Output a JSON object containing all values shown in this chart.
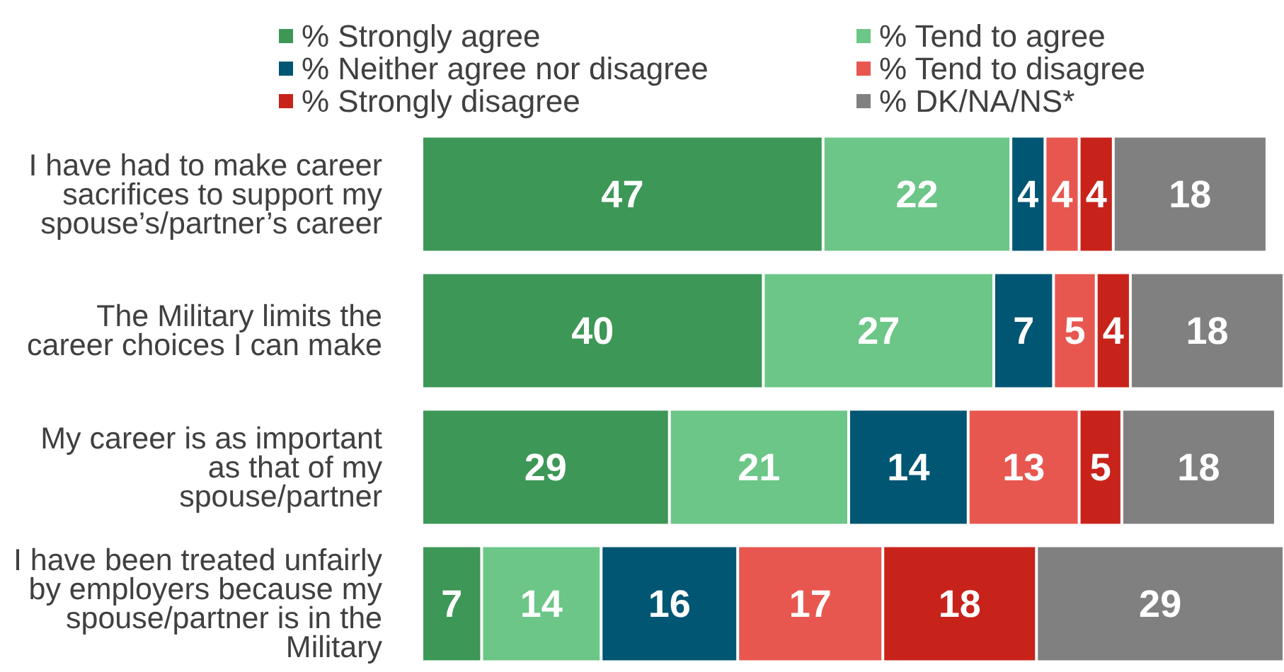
{
  "chart_data": {
    "type": "bar",
    "orientation": "horizontal",
    "stacked": true,
    "data_labels": true,
    "grid": false,
    "legend": "top",
    "tick_labels": "y",
    "categories": [
      "I have had to make career sacrifices to support my spouse’s/partner’s career",
      "The Military limits the career choices I can make",
      "My career is as important as that of my spouse/partner",
      "I have been treated unfairly by employers because my spouse/partner is in the Military"
    ],
    "series": [
      {
        "name": "% Strongly agree",
        "color": "#3d9756",
        "values": [
          47,
          40,
          29,
          7
        ]
      },
      {
        "name": "% Tend to agree",
        "color": "#6cc687",
        "values": [
          22,
          27,
          21,
          14
        ]
      },
      {
        "name": "% Neither agree nor disagree",
        "color": "#005673",
        "values": [
          4,
          7,
          14,
          16
        ]
      },
      {
        "name": "% Tend to disagree",
        "color": "#e8574f",
        "values": [
          4,
          5,
          13,
          17
        ]
      },
      {
        "name": "% Strongly disagree",
        "color": "#c8231b",
        "values": [
          4,
          4,
          5,
          18
        ]
      },
      {
        "name": "% DK/NA/NS*",
        "color": "#808080",
        "values": [
          18,
          18,
          18,
          29
        ]
      }
    ]
  }
}
